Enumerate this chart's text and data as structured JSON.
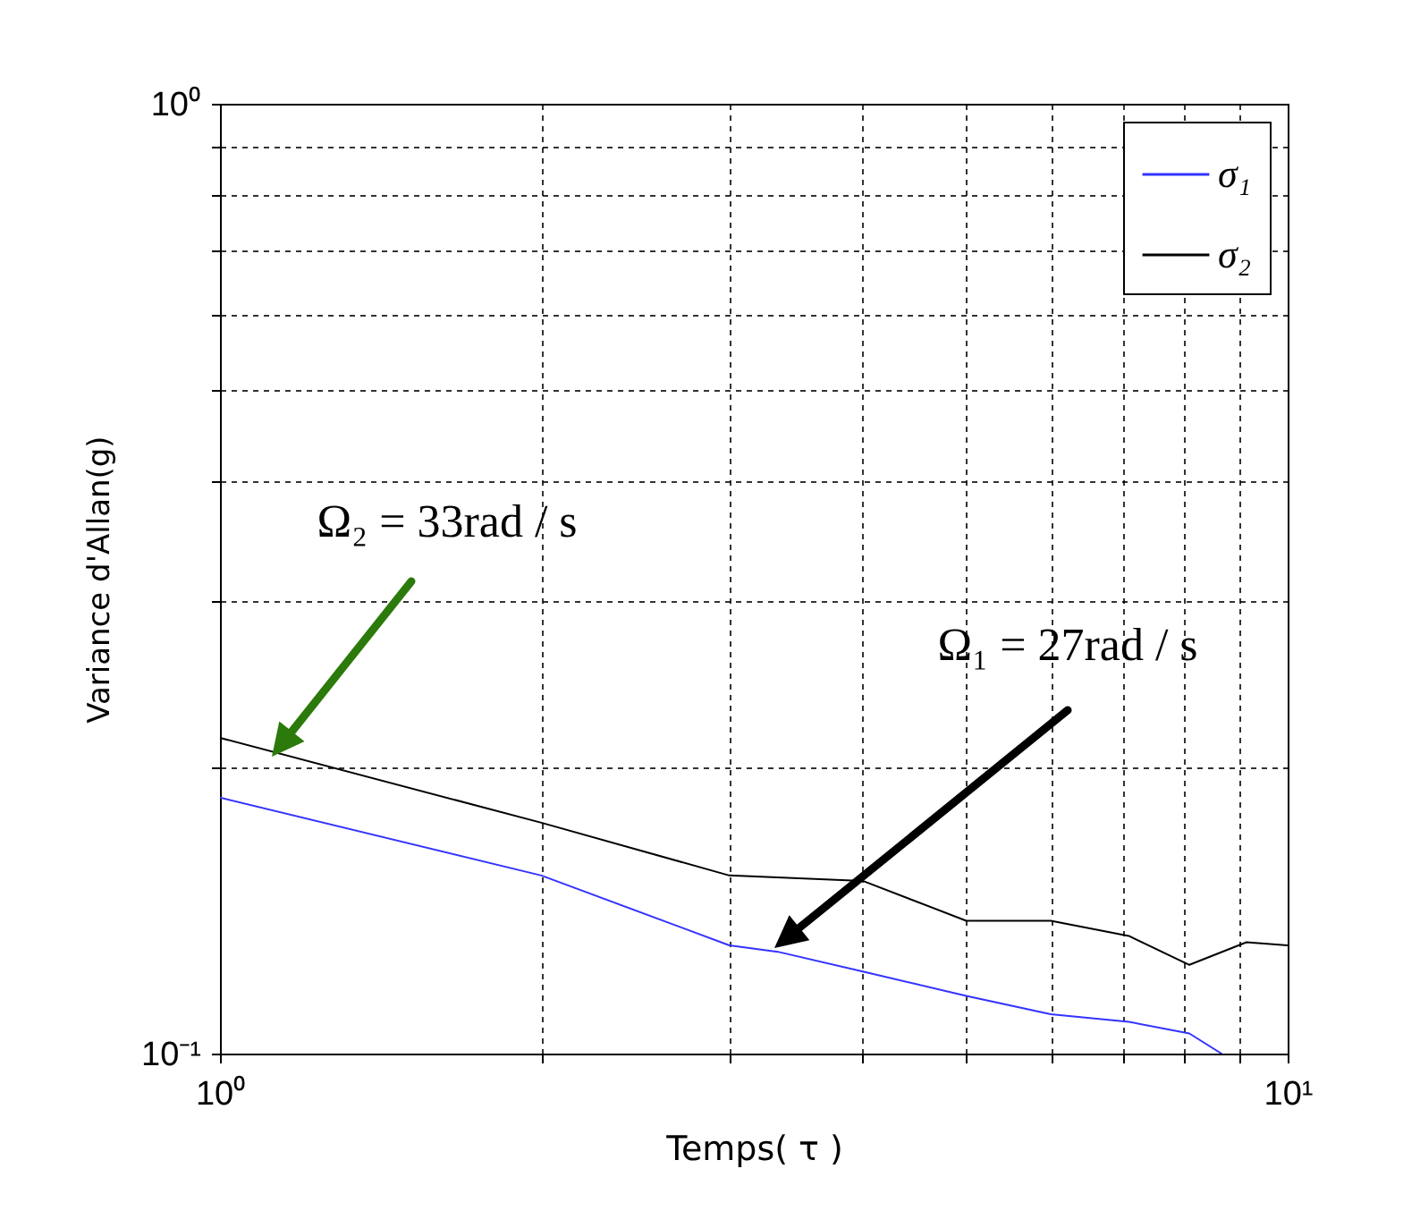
{
  "chart_data": {
    "type": "line",
    "xlabel": "Temps( τ )",
    "ylabel": "Variance d'Allan(g)",
    "series": [
      {
        "name": "σ₁",
        "color": "#3333ff",
        "x": [
          1,
          2,
          3,
          3.33,
          4,
          5,
          6,
          7.1,
          8.09,
          8.67
        ],
        "values": [
          0.186,
          0.154,
          0.13,
          0.128,
          0.122,
          0.115,
          0.11,
          0.108,
          0.105,
          0.1
        ]
      },
      {
        "name": "σ₂",
        "color": "#000000",
        "x": [
          1,
          2,
          3,
          4,
          5,
          6,
          7.1,
          8.09,
          9.15,
          10
        ],
        "values": [
          0.215,
          0.175,
          0.154,
          0.152,
          0.138,
          0.138,
          0.133,
          0.124,
          0.131,
          0.13
        ]
      }
    ],
    "xlim": [
      1,
      10
    ],
    "ylim": [
      0.1,
      1
    ],
    "xticks": [
      {
        "value": 1,
        "label": "10⁰"
      },
      {
        "value": 2,
        "label": null
      },
      {
        "value": 3,
        "label": null
      },
      {
        "value": 4,
        "label": null
      },
      {
        "value": 5,
        "label": null
      },
      {
        "value": 6,
        "label": null
      },
      {
        "value": 7,
        "label": null
      },
      {
        "value": 8,
        "label": null
      },
      {
        "value": 9,
        "label": null
      },
      {
        "value": 10,
        "label": "10¹"
      }
    ],
    "yticks": [
      {
        "value": 0.1,
        "label": "10⁻¹"
      },
      {
        "value": 0.2,
        "label": null
      },
      {
        "value": 0.3,
        "label": null
      },
      {
        "value": 0.4,
        "label": null
      },
      {
        "value": 0.5,
        "label": null
      },
      {
        "value": 0.6,
        "label": null
      },
      {
        "value": 0.7,
        "label": null
      },
      {
        "value": 0.8,
        "label": null
      },
      {
        "value": 0.9,
        "label": null
      },
      {
        "value": 1,
        "label": "10⁰"
      }
    ],
    "log": "xy",
    "grid": true,
    "legend": "top right",
    "marker": "none",
    "line_style": "solid",
    "annotations": [
      "Ω₂ = 33rad / s",
      "Ω₁ = 27rad / s"
    ]
  }
}
